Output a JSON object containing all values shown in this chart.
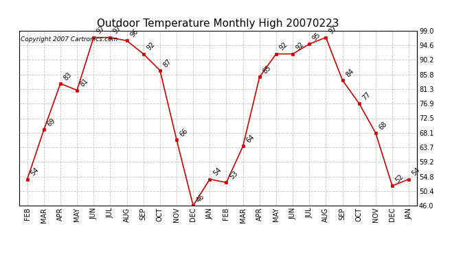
{
  "title": "Outdoor Temperature Monthly High 20070223",
  "copyright": "Copyright 2007 Cartronics.com",
  "x_labels": [
    "FEB",
    "MAR",
    "APR",
    "MAY",
    "JUN",
    "JUL",
    "AUG",
    "SEP",
    "OCT",
    "NOV",
    "DEC",
    "JAN",
    "FEB",
    "MAR",
    "APR",
    "MAY",
    "JUN",
    "JUL",
    "AUG",
    "SEP",
    "OCT",
    "NOV",
    "DEC",
    "JAN"
  ],
  "values": [
    54,
    69,
    83,
    81,
    97,
    97,
    96,
    92,
    87,
    66,
    46,
    54,
    53,
    64,
    85,
    92,
    92,
    95,
    97,
    84,
    77,
    68,
    52,
    54
  ],
  "ylim": [
    46.0,
    99.0
  ],
  "ytick_labels": [
    "46.0",
    "50.4",
    "54.8",
    "59.2",
    "63.7",
    "68.1",
    "72.5",
    "76.9",
    "81.3",
    "85.8",
    "90.2",
    "94.6",
    "99.0"
  ],
  "ytick_values": [
    46.0,
    50.4,
    54.8,
    59.2,
    63.7,
    68.1,
    72.5,
    76.9,
    81.3,
    85.8,
    90.2,
    94.6,
    99.0
  ],
  "line_color": "#cc0000",
  "marker_color": "#cc0000",
  "bg_color": "#ffffff",
  "grid_color": "#c0c0c0",
  "title_fontsize": 11,
  "annot_fontsize": 7,
  "tick_fontsize": 7,
  "copyright_fontsize": 6.5
}
